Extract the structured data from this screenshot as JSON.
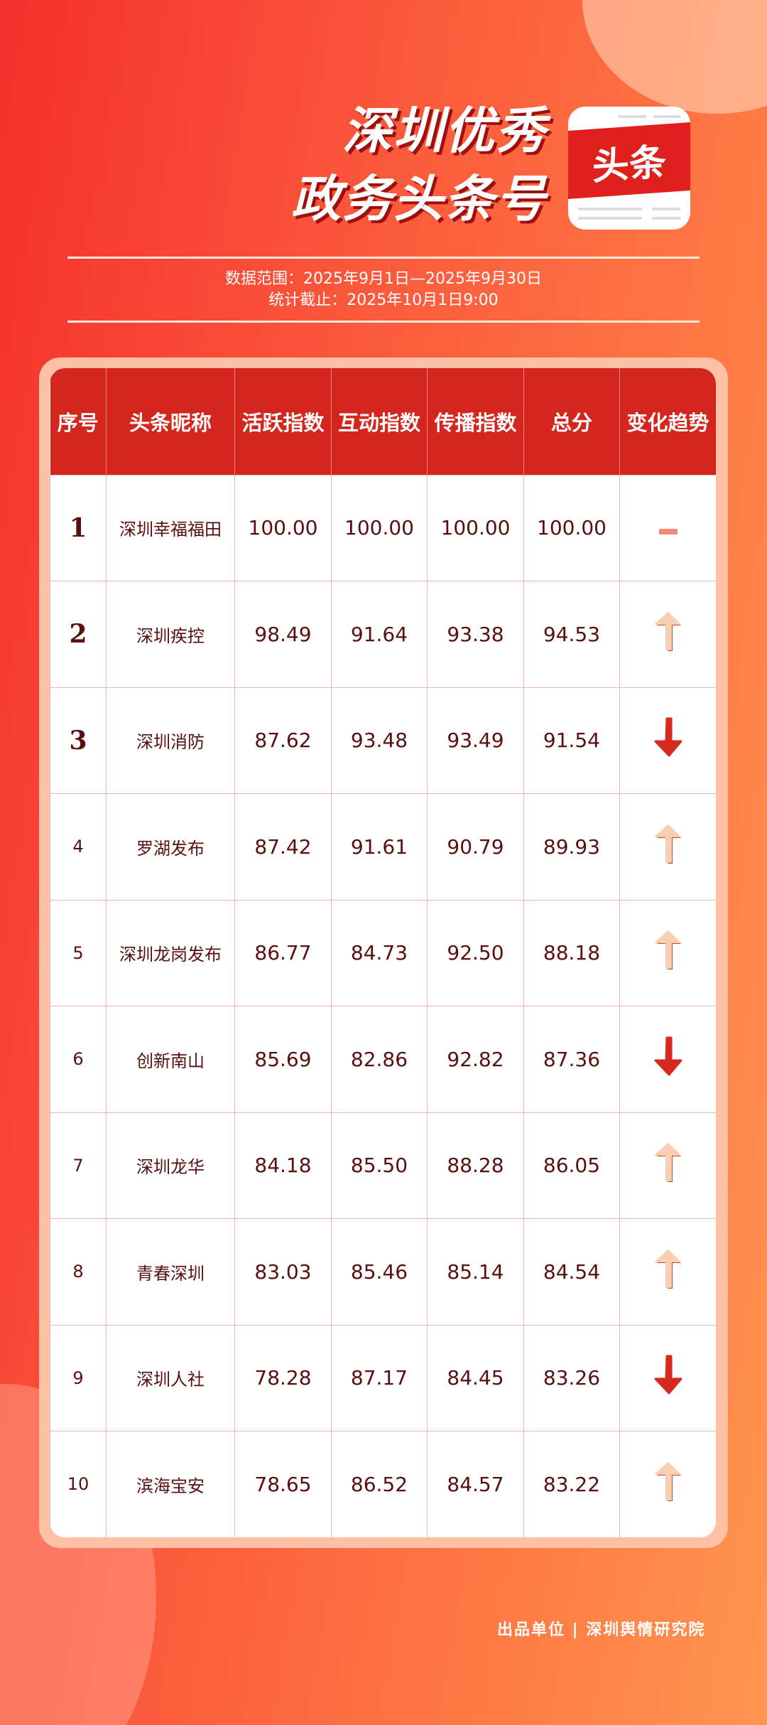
{
  "header": {
    "title_line1": "深圳优秀",
    "title_line2": "政务头条号",
    "logo_text": "头条",
    "data_range": "数据范围：2025年9月1日—2025年9月30日",
    "cutoff": "统计截止：2025年10月1日9:00"
  },
  "table": {
    "columns": [
      "序号",
      "头条昵称",
      "活跃指数",
      "互动指数",
      "传播指数",
      "总分",
      "变化趋势"
    ],
    "rows": [
      {
        "rank": "1",
        "name": "深圳幸福福田",
        "active": "100.00",
        "interact": "100.00",
        "spread": "100.00",
        "total": "100.00",
        "trend": "flat"
      },
      {
        "rank": "2",
        "name": "深圳疾控",
        "active": "98.49",
        "interact": "91.64",
        "spread": "93.38",
        "total": "94.53",
        "trend": "up"
      },
      {
        "rank": "3",
        "name": "深圳消防",
        "active": "87.62",
        "interact": "93.48",
        "spread": "93.49",
        "total": "91.54",
        "trend": "down"
      },
      {
        "rank": "4",
        "name": "罗湖发布",
        "active": "87.42",
        "interact": "91.61",
        "spread": "90.79",
        "total": "89.93",
        "trend": "up"
      },
      {
        "rank": "5",
        "name": "深圳龙岗发布",
        "active": "86.77",
        "interact": "84.73",
        "spread": "92.50",
        "total": "88.18",
        "trend": "up"
      },
      {
        "rank": "6",
        "name": "创新南山",
        "active": "85.69",
        "interact": "82.86",
        "spread": "92.82",
        "total": "87.36",
        "trend": "down"
      },
      {
        "rank": "7",
        "name": "深圳龙华",
        "active": "84.18",
        "interact": "85.50",
        "spread": "88.28",
        "total": "86.05",
        "trend": "up"
      },
      {
        "rank": "8",
        "name": "青春深圳",
        "active": "83.03",
        "interact": "85.46",
        "spread": "85.14",
        "total": "84.54",
        "trend": "up"
      },
      {
        "rank": "9",
        "name": "深圳人社",
        "active": "78.28",
        "interact": "87.17",
        "spread": "84.45",
        "total": "83.26",
        "trend": "down"
      },
      {
        "rank": "10",
        "name": "滨海宝安",
        "active": "78.65",
        "interact": "86.52",
        "spread": "84.57",
        "total": "83.22",
        "trend": "up"
      }
    ]
  },
  "colors": {
    "header_red": "#d4261c",
    "up_arrow": "#f9cfb3",
    "down_arrow": "#d62a1e",
    "flat": "#f28a7a"
  },
  "footer": "出品单位 | 深圳舆情研究院"
}
